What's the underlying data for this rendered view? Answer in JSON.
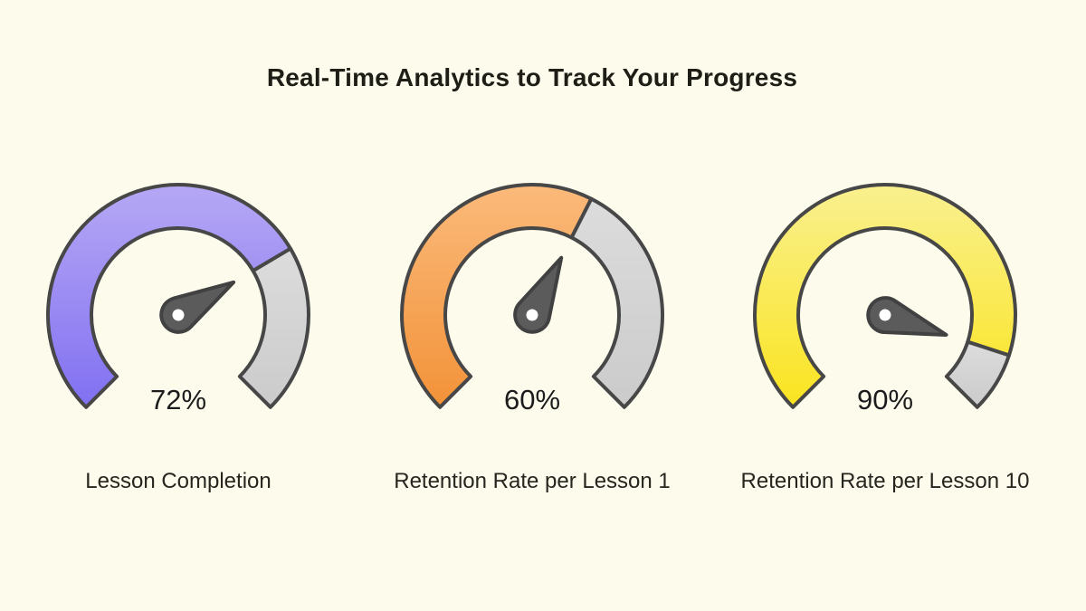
{
  "page": {
    "background": "#FCFBEC",
    "title": "Real-Time Analytics to Track Your Progress"
  },
  "chart_data": {
    "type": "gauge",
    "title": "Real-Time Analytics to Track Your Progress",
    "min": 0,
    "max": 100,
    "start_angle_deg": 225,
    "end_angle_deg": -45,
    "sweep_degrees": 270,
    "outline_color": "#474747",
    "needle_color": "#5B5B5B",
    "needle_outline": "#414141",
    "needle_hub_color": "#FFFFFF",
    "track_color_top": "#DCDCDC",
    "track_color_bottom": "#CBCBCB",
    "gauges": [
      {
        "label": "Lesson Completion",
        "value": 72,
        "value_label": "72%",
        "fill_top": "#B6A8F4",
        "fill_bottom": "#8170F2"
      },
      {
        "label": "Retention Rate per Lesson 1",
        "value": 60,
        "value_label": "60%",
        "fill_top": "#FBBA7B",
        "fill_bottom": "#F29238"
      },
      {
        "label": "Retention Rate per Lesson 10",
        "value": 90,
        "value_label": "90%",
        "fill_top": "#F9F090",
        "fill_bottom": "#FAE41F"
      }
    ]
  }
}
